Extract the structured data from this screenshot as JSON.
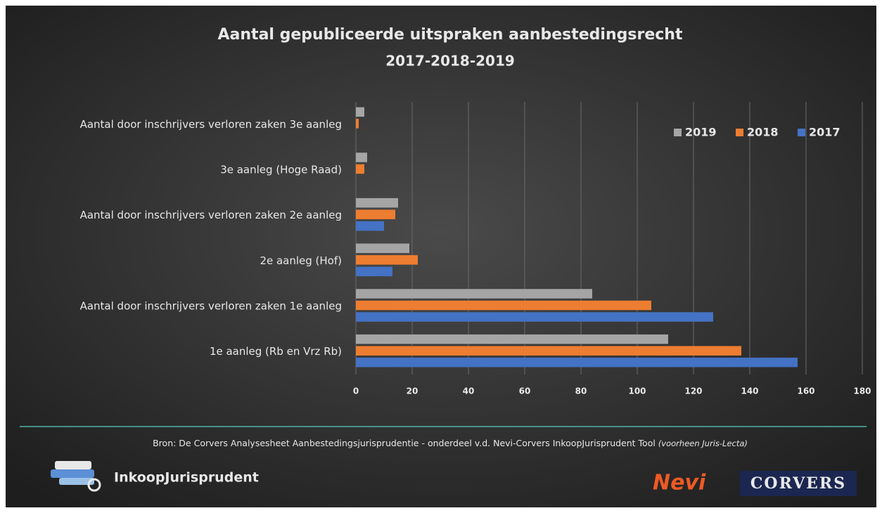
{
  "chart_data": {
    "type": "barh",
    "title": "Aantal gepubliceerde uitspraken aanbestedingsrecht",
    "subtitle": "2017-2018-2019",
    "categories": [
      "Aantal door inschrijvers verloren zaken 3e aanleg",
      "3e aanleg (Hoge Raad)",
      "Aantal door inschrijvers verloren zaken 2e aanleg",
      "2e aanleg (Hof)",
      "Aantal door inschrijvers verloren zaken 1e aanleg",
      "1e aanleg (Rb en Vrz Rb)"
    ],
    "series": [
      {
        "name": "2019",
        "color": "#a5a5a5",
        "values": [
          3,
          4,
          15,
          19,
          84,
          111
        ]
      },
      {
        "name": "2018",
        "color": "#ed7d31",
        "values": [
          1,
          3,
          14,
          22,
          105,
          137
        ]
      },
      {
        "name": "2017",
        "color": "#4472c4",
        "values": [
          0,
          0,
          10,
          13,
          127,
          157
        ]
      }
    ],
    "xlim": [
      0,
      180
    ],
    "xticks": [
      0,
      20,
      40,
      60,
      80,
      100,
      120,
      140,
      160,
      180
    ],
    "grid": true,
    "legend": "top-right"
  },
  "footer": {
    "source": "Bron:  De Corvers Analysesheet Aanbestedingsjurisprudentie - onderdeel v.d. Nevi-Corvers InkoopJurisprudent Tool",
    "source_note": "(voorheen Juris-Lecta)",
    "brand": "InkoopJurisprudent",
    "logo_nevi": "Nevi",
    "logo_corvers": "CORVERS"
  }
}
